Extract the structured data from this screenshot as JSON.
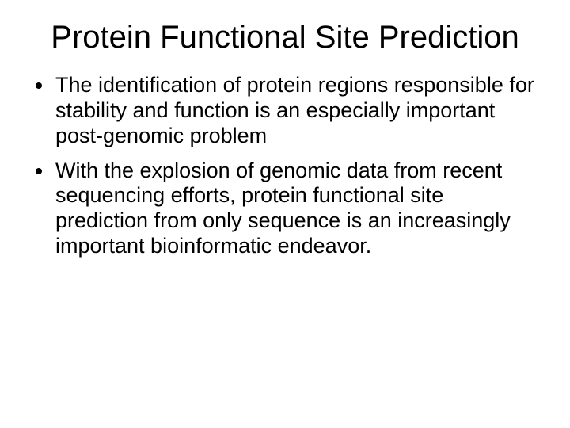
{
  "slide": {
    "title": "Protein Functional Site Prediction",
    "title_fontsize": 40,
    "title_color": "#000000",
    "title_align": "center",
    "bullets": [
      "The identification of protein regions responsible for stability and function is an especially important post-genomic problem",
      "With the explosion of genomic data from recent sequencing efforts, protein functional site prediction from only sequence is an increasingly important bioinformatic endeavor."
    ],
    "body_fontsize": 27,
    "body_color": "#000000",
    "bullet_marker": "disc",
    "background_color": "#ffffff",
    "font_family": "Arial"
  }
}
